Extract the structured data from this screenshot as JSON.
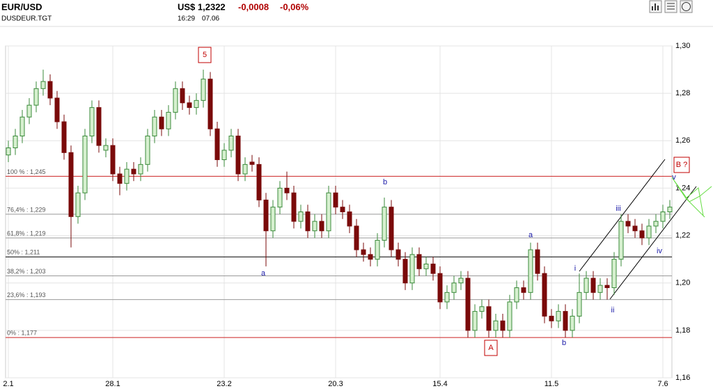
{
  "header": {
    "symbol": "EUR/USD",
    "code": "DUSDEUR.TGT",
    "price": "US$ 1,2322",
    "change": "-0,0008",
    "change_pct": "-0,06%",
    "time": "16:29",
    "date": "07.06"
  },
  "chart_data": {
    "type": "candlestick",
    "ylim": [
      1.16,
      1.3
    ],
    "yticks": [
      {
        "value": 1.3,
        "label": "1,30"
      },
      {
        "value": 1.28,
        "label": "1,28"
      },
      {
        "value": 1.26,
        "label": "1,26"
      },
      {
        "value": 1.24,
        "label": "1,24"
      },
      {
        "value": 1.22,
        "label": "1,22"
      },
      {
        "value": 1.2,
        "label": "1,20"
      },
      {
        "value": 1.18,
        "label": "1,18"
      },
      {
        "value": 1.16,
        "label": "1,16"
      }
    ],
    "xticks": [
      {
        "value": 0,
        "label": "2.1"
      },
      {
        "value": 15,
        "label": "28.1"
      },
      {
        "value": 31,
        "label": "23.2"
      },
      {
        "value": 47,
        "label": "20.3"
      },
      {
        "value": 62,
        "label": "15.4"
      },
      {
        "value": 78,
        "label": "11.5"
      },
      {
        "value": 94,
        "label": "7.6"
      }
    ],
    "grid": true,
    "up_color": "#3a8a3a",
    "down_color": "#7a0a0a",
    "levels": [
      {
        "label": "100 % : 1,245",
        "value": 1.245,
        "color": "#cc2222"
      },
      {
        "label": "76,4% : 1,229",
        "value": 1.229,
        "color": "#999999"
      },
      {
        "label": "61,8% : 1,219",
        "value": 1.219,
        "color": "#999999"
      },
      {
        "label": "50% : 1,211",
        "value": 1.211,
        "color": "#000000"
      },
      {
        "label": "38,2% : 1,203",
        "value": 1.203,
        "color": "#999999"
      },
      {
        "label": "23,6% : 1,193",
        "value": 1.193,
        "color": "#999999"
      },
      {
        "label": "0% : 1,177",
        "value": 1.177,
        "color": "#cc2222"
      }
    ],
    "annotations": [
      "5",
      "a",
      "b",
      "A",
      "a",
      "b",
      "i",
      "ii",
      "iii",
      "iv",
      "v",
      "B ?"
    ],
    "candles": [
      [
        1.254,
        1.26,
        1.251,
        1.257
      ],
      [
        1.257,
        1.265,
        1.254,
        1.262
      ],
      [
        1.262,
        1.273,
        1.259,
        1.27
      ],
      [
        1.27,
        1.278,
        1.267,
        1.275
      ],
      [
        1.275,
        1.285,
        1.272,
        1.282
      ],
      [
        1.282,
        1.29,
        1.279,
        1.285
      ],
      [
        1.285,
        1.288,
        1.275,
        1.278
      ],
      [
        1.278,
        1.281,
        1.265,
        1.268
      ],
      [
        1.268,
        1.271,
        1.252,
        1.255
      ],
      [
        1.255,
        1.258,
        1.215,
        1.228
      ],
      [
        1.228,
        1.241,
        1.225,
        1.238
      ],
      [
        1.238,
        1.265,
        1.235,
        1.262
      ],
      [
        1.262,
        1.277,
        1.259,
        1.274
      ],
      [
        1.274,
        1.277,
        1.255,
        1.258
      ],
      [
        1.256,
        1.261,
        1.253,
        1.258
      ],
      [
        1.258,
        1.261,
        1.243,
        1.246
      ],
      [
        1.246,
        1.249,
        1.237,
        1.242
      ],
      [
        1.242,
        1.251,
        1.239,
        1.248
      ],
      [
        1.248,
        1.251,
        1.243,
        1.246
      ],
      [
        1.246,
        1.253,
        1.243,
        1.25
      ],
      [
        1.25,
        1.265,
        1.247,
        1.262
      ],
      [
        1.262,
        1.273,
        1.259,
        1.27
      ],
      [
        1.27,
        1.273,
        1.262,
        1.265
      ],
      [
        1.265,
        1.275,
        1.262,
        1.272
      ],
      [
        1.272,
        1.285,
        1.269,
        1.282
      ],
      [
        1.282,
        1.285,
        1.273,
        1.276
      ],
      [
        1.276,
        1.279,
        1.271,
        1.274
      ],
      [
        1.274,
        1.28,
        1.271,
        1.277
      ],
      [
        1.277,
        1.29,
        1.274,
        1.286
      ],
      [
        1.286,
        1.289,
        1.262,
        1.265
      ],
      [
        1.265,
        1.268,
        1.249,
        1.252
      ],
      [
        1.252,
        1.259,
        1.249,
        1.256
      ],
      [
        1.256,
        1.265,
        1.253,
        1.262
      ],
      [
        1.262,
        1.265,
        1.243,
        1.246
      ],
      [
        1.246,
        1.253,
        1.243,
        1.25
      ],
      [
        1.251,
        1.254,
        1.247,
        1.25
      ],
      [
        1.25,
        1.253,
        1.232,
        1.235
      ],
      [
        1.235,
        1.238,
        1.207,
        1.222
      ],
      [
        1.222,
        1.235,
        1.219,
        1.232
      ],
      [
        1.232,
        1.243,
        1.229,
        1.24
      ],
      [
        1.24,
        1.247,
        1.235,
        1.238
      ],
      [
        1.238,
        1.241,
        1.223,
        1.226
      ],
      [
        1.226,
        1.233,
        1.223,
        1.23
      ],
      [
        1.23,
        1.233,
        1.219,
        1.222
      ],
      [
        1.222,
        1.229,
        1.219,
        1.226
      ],
      [
        1.226,
        1.229,
        1.219,
        1.222
      ],
      [
        1.222,
        1.241,
        1.219,
        1.238
      ],
      [
        1.238,
        1.241,
        1.229,
        1.232
      ],
      [
        1.232,
        1.235,
        1.227,
        1.23
      ],
      [
        1.23,
        1.233,
        1.221,
        1.224
      ],
      [
        1.224,
        1.227,
        1.211,
        1.214
      ],
      [
        1.214,
        1.217,
        1.209,
        1.212
      ],
      [
        1.212,
        1.215,
        1.207,
        1.21
      ],
      [
        1.21,
        1.221,
        1.207,
        1.218
      ],
      [
        1.218,
        1.236,
        1.215,
        1.232
      ],
      [
        1.232,
        1.235,
        1.211,
        1.214
      ],
      [
        1.214,
        1.217,
        1.207,
        1.21
      ],
      [
        1.21,
        1.213,
        1.197,
        1.2
      ],
      [
        1.2,
        1.215,
        1.197,
        1.212
      ],
      [
        1.212,
        1.215,
        1.203,
        1.206
      ],
      [
        1.206,
        1.211,
        1.203,
        1.208
      ],
      [
        1.208,
        1.211,
        1.201,
        1.204
      ],
      [
        1.204,
        1.207,
        1.189,
        1.192
      ],
      [
        1.192,
        1.199,
        1.189,
        1.196
      ],
      [
        1.196,
        1.203,
        1.193,
        1.2
      ],
      [
        1.2,
        1.205,
        1.197,
        1.202
      ],
      [
        1.202,
        1.205,
        1.177,
        1.18
      ],
      [
        1.18,
        1.191,
        1.177,
        1.188
      ],
      [
        1.188,
        1.193,
        1.185,
        1.19
      ],
      [
        1.19,
        1.193,
        1.177,
        1.18
      ],
      [
        1.18,
        1.187,
        1.177,
        1.184
      ],
      [
        1.184,
        1.187,
        1.177,
        1.18
      ],
      [
        1.18,
        1.195,
        1.177,
        1.192
      ],
      [
        1.192,
        1.201,
        1.189,
        1.198
      ],
      [
        1.198,
        1.201,
        1.193,
        1.196
      ],
      [
        1.196,
        1.217,
        1.193,
        1.214
      ],
      [
        1.214,
        1.217,
        1.201,
        1.204
      ],
      [
        1.204,
        1.207,
        1.183,
        1.186
      ],
      [
        1.186,
        1.189,
        1.181,
        1.184
      ],
      [
        1.184,
        1.191,
        1.181,
        1.188
      ],
      [
        1.188,
        1.191,
        1.177,
        1.18
      ],
      [
        1.18,
        1.189,
        1.177,
        1.186
      ],
      [
        1.186,
        1.204,
        1.183,
        1.196
      ],
      [
        1.196,
        1.205,
        1.193,
        1.202
      ],
      [
        1.202,
        1.205,
        1.193,
        1.196
      ],
      [
        1.196,
        1.202,
        1.193,
        1.199
      ],
      [
        1.199,
        1.202,
        1.193,
        1.198
      ],
      [
        1.198,
        1.213,
        1.195,
        1.21
      ],
      [
        1.21,
        1.229,
        1.207,
        1.226
      ],
      [
        1.226,
        1.229,
        1.221,
        1.224
      ],
      [
        1.224,
        1.227,
        1.219,
        1.222
      ],
      [
        1.222,
        1.225,
        1.216,
        1.219
      ],
      [
        1.219,
        1.227,
        1.216,
        1.224
      ],
      [
        1.224,
        1.229,
        1.221,
        1.226
      ],
      [
        1.226,
        1.233,
        1.223,
        1.23
      ],
      [
        1.23,
        1.235,
        1.227,
        1.232
      ]
    ]
  }
}
